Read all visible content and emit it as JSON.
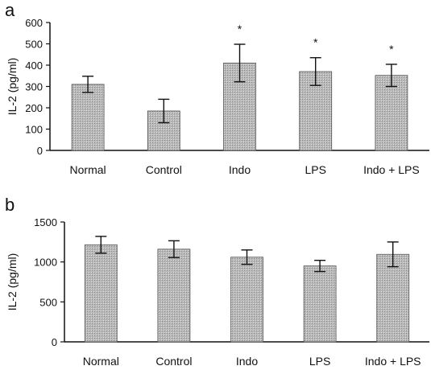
{
  "chart_data": [
    {
      "type": "bar",
      "panel_label": "a",
      "categories": [
        "Normal",
        "Control",
        "Indo",
        "LPS",
        "Indo + LPS"
      ],
      "values": [
        310,
        185,
        410,
        370,
        352
      ],
      "errors": [
        38,
        55,
        88,
        65,
        52
      ],
      "significance": [
        "",
        "",
        "*",
        "*",
        "*"
      ],
      "ylabel": "IL-2 (pg/ml)",
      "ylim": [
        0,
        600
      ],
      "yticks": [
        0,
        100,
        200,
        300,
        400,
        500,
        600
      ],
      "grid": false,
      "bar_color": "#b8b8b8"
    },
    {
      "type": "bar",
      "panel_label": "b",
      "categories": [
        "Normal",
        "Control",
        "Indo",
        "LPS",
        "Indo + LPS"
      ],
      "values": [
        1215,
        1160,
        1060,
        950,
        1095
      ],
      "errors": [
        105,
        105,
        90,
        70,
        155
      ],
      "significance": [
        "",
        "",
        "",
        "",
        ""
      ],
      "ylabel": "IL-2 (pg/ml)",
      "ylim": [
        0,
        1500
      ],
      "yticks": [
        0,
        500,
        1000,
        1500
      ],
      "grid": false,
      "bar_color": "#b8b8b8"
    }
  ]
}
